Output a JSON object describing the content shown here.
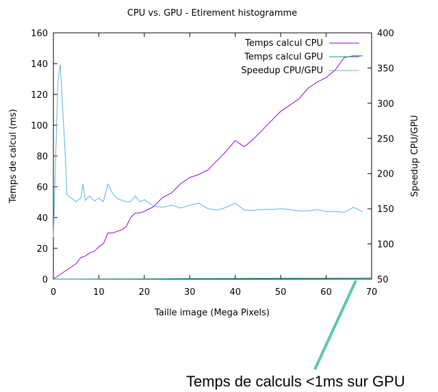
{
  "chart_data": {
    "type": "line",
    "title": "CPU vs. GPU - Etirement histogramme",
    "xlabel": "Taille image (Mega Pixels)",
    "ylabel": "Temps de calcul (ms)",
    "y2label": "Speedup CPU/GPU",
    "xlim": [
      0,
      70
    ],
    "ylim": [
      0,
      160
    ],
    "y2lim": [
      50,
      400
    ],
    "xticks": [
      0,
      10,
      20,
      30,
      40,
      50,
      60,
      70
    ],
    "yticks": [
      0,
      20,
      40,
      60,
      80,
      100,
      120,
      140,
      160
    ],
    "y2ticks": [
      50,
      100,
      150,
      200,
      250,
      300,
      350,
      400
    ],
    "grid": false,
    "legend_position": "top-right",
    "series": [
      {
        "name": "Temps calcul CPU",
        "axis": "y",
        "color": "#9400d3",
        "x": [
          0,
          1,
          2,
          3,
          4,
          5,
          6,
          7,
          8,
          9,
          10,
          11,
          12,
          13,
          14,
          15,
          16,
          17,
          18,
          19,
          20,
          22,
          24,
          26,
          28,
          30,
          32,
          34,
          36,
          38,
          40,
          42,
          44,
          46,
          48,
          50,
          52,
          54,
          56,
          58,
          60,
          62,
          64,
          66,
          68
        ],
        "values": [
          0,
          2,
          4,
          6,
          8,
          10,
          14,
          15,
          17,
          18,
          21,
          23,
          30,
          30,
          31,
          32,
          34,
          40,
          43,
          43,
          44,
          47,
          53,
          56,
          62,
          66,
          68,
          71,
          77,
          83,
          90,
          86,
          91,
          97,
          103,
          109,
          113,
          117,
          124,
          128,
          131,
          136,
          144,
          145,
          145
        ]
      },
      {
        "name": "Temps calcul GPU",
        "axis": "y",
        "color": "#009e73",
        "x": [
          0,
          10,
          20,
          30,
          40,
          50,
          60,
          70
        ],
        "values": [
          0,
          0.1,
          0.2,
          0.3,
          0.4,
          0.5,
          0.6,
          0.7
        ]
      },
      {
        "name": "Speedup CPU/GPU",
        "axis": "y2",
        "color": "#56b4e9",
        "x": [
          0,
          1,
          1.5,
          2.5,
          3,
          4,
          5,
          6,
          6.5,
          7,
          8,
          9,
          10,
          11,
          12,
          13,
          14,
          15,
          16,
          17,
          18,
          19,
          20,
          22,
          24,
          26,
          28,
          30,
          32,
          34,
          36,
          38,
          40,
          42,
          44,
          46,
          48,
          50,
          52,
          54,
          56,
          58,
          60,
          62,
          64,
          66,
          68
        ],
        "values": [
          110,
          330,
          355,
          240,
          170,
          165,
          160,
          165,
          185,
          162,
          168,
          161,
          165,
          160,
          185,
          172,
          165,
          162,
          160,
          160,
          168,
          160,
          163,
          154,
          152,
          155,
          151,
          155,
          158,
          150,
          148,
          152,
          158,
          148,
          148,
          149,
          149,
          150,
          149,
          147,
          147,
          149,
          146,
          146,
          145,
          152,
          146
        ]
      }
    ],
    "annotation": "Temps de calculs <1ms sur GPU"
  }
}
